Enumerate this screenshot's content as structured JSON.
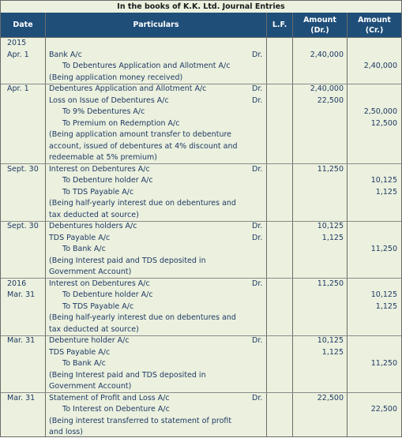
{
  "title": "In the books of K.K. Ltd. Journal Entries",
  "headers": {
    "date": "Date",
    "particulars": "Particulars",
    "lf": "L.F.",
    "amount_dr": [
      "Amount",
      "(Dr.)"
    ],
    "amount_cr": [
      "Amount",
      "(Cr.)"
    ]
  },
  "rows": [
    {
      "date": "2015",
      "particulars": "",
      "indent": 0,
      "lf": "",
      "dr": "",
      "cr": ""
    },
    {
      "date": "Apr. 1",
      "particulars": "Bank A/c",
      "indent": 0,
      "lf": "Dr.",
      "dr": "2,40,000",
      "cr": ""
    },
    {
      "date": "",
      "particulars": "To Debentures Application and Allotment A/c",
      "indent": 1,
      "lf": "",
      "dr": "",
      "cr": "2,40,000"
    },
    {
      "date": "",
      "particulars": "(Being application money received)",
      "indent": 0,
      "lf": "",
      "dr": "",
      "cr": ""
    },
    {
      "date": "Apr. 1",
      "particulars": "Debentures Application and Allotment A/c",
      "indent": 0,
      "lf": "Dr.",
      "dr": "2,40,000",
      "cr": ""
    },
    {
      "date": "",
      "particulars": "Loss on Issue of Debentures A/c",
      "indent": 0,
      "lf": "Dr.",
      "dr": "22,500",
      "cr": ""
    },
    {
      "date": "",
      "particulars": "To 9% Debentures A/c",
      "indent": 1,
      "lf": "",
      "dr": "",
      "cr": "2,50,000"
    },
    {
      "date": "",
      "particulars": "To Premium on Redemption A/c",
      "indent": 1,
      "lf": "",
      "dr": "",
      "cr": "12,500"
    },
    {
      "date": "",
      "particulars": "(Being application amount transfer to debenture",
      "indent": 0,
      "lf": "",
      "dr": "",
      "cr": ""
    },
    {
      "date": "",
      "particulars": "account, issued of debentures at 4% discount and",
      "indent": 0,
      "lf": "",
      "dr": "",
      "cr": ""
    },
    {
      "date": "",
      "particulars": "redeemable at 5% premium)",
      "indent": 0,
      "lf": "",
      "dr": "",
      "cr": ""
    },
    {
      "date": "Sept. 30",
      "particulars": "Interest on Debentures A/c",
      "indent": 0,
      "lf": "Dr.",
      "dr": "11,250",
      "cr": ""
    },
    {
      "date": "",
      "particulars": "To Debenture holder A/c",
      "indent": 1,
      "lf": "",
      "dr": "",
      "cr": "10,125"
    },
    {
      "date": "",
      "particulars": "To TDS Payable A/c",
      "indent": 1,
      "lf": "",
      "dr": "",
      "cr": "1,125"
    },
    {
      "date": "",
      "particulars": "(Being half-yearly interest due on debentures and",
      "indent": 0,
      "lf": "",
      "dr": "",
      "cr": ""
    },
    {
      "date": "",
      "particulars": "tax deducted at source)",
      "indent": 0,
      "lf": "",
      "dr": "",
      "cr": ""
    },
    {
      "date": "Sept. 30",
      "particulars": "Debentures holders A/c",
      "indent": 0,
      "lf": "Dr.",
      "dr": "10,125",
      "cr": ""
    },
    {
      "date": "",
      "particulars": "TDS Payable A/c",
      "indent": 0,
      "lf": "Dr.",
      "dr": "1,125",
      "cr": ""
    },
    {
      "date": "",
      "particulars": "To Bank A/c",
      "indent": 1,
      "lf": "",
      "dr": "",
      "cr": "11,250"
    },
    {
      "date": "",
      "particulars": "(Being Interest paid and TDS deposited in",
      "indent": 0,
      "lf": "",
      "dr": "",
      "cr": ""
    },
    {
      "date": "",
      "particulars": "Government Account)",
      "indent": 0,
      "lf": "",
      "dr": "",
      "cr": ""
    },
    {
      "date": "2016",
      "particulars": "Interest on Debentures A/c",
      "indent": 0,
      "lf": "Dr.",
      "dr": "11,250",
      "cr": ""
    },
    {
      "date": "Mar. 31",
      "particulars": "To Debenture holder A/c",
      "indent": 1,
      "lf": "",
      "dr": "",
      "cr": "10,125"
    },
    {
      "date": "",
      "particulars": "To TDS Payable A/c",
      "indent": 1,
      "lf": "",
      "dr": "",
      "cr": "1,125"
    },
    {
      "date": "",
      "particulars": "(Being half-yearly interest due on debentures and",
      "indent": 0,
      "lf": "",
      "dr": "",
      "cr": ""
    },
    {
      "date": "",
      "particulars": "tax deducted at source)",
      "indent": 0,
      "lf": "",
      "dr": "",
      "cr": ""
    },
    {
      "date": "Mar. 31",
      "particulars": "Debenture holder A/c",
      "indent": 0,
      "lf": "Dr.",
      "dr": "10,125",
      "cr": ""
    },
    {
      "date": "",
      "particulars": "TDS Payable A/c",
      "indent": 0,
      "lf": "",
      "dr": "1,125",
      "cr": ""
    },
    {
      "date": "",
      "particulars": "To Bank A/c",
      "indent": 1,
      "lf": "",
      "dr": "",
      "cr": "11,250"
    },
    {
      "date": "",
      "particulars": "(Being Interest paid and TDS deposited in",
      "indent": 0,
      "lf": "",
      "dr": "",
      "cr": ""
    },
    {
      "date": "",
      "particulars": "Government Account)",
      "indent": 0,
      "lf": "",
      "dr": "",
      "cr": ""
    },
    {
      "date": "Mar. 31",
      "particulars": "Statement of Profit and Loss A/c",
      "indent": 0,
      "lf": "Dr.",
      "dr": "22,500",
      "cr": ""
    },
    {
      "date": "",
      "particulars": "To Interest on Debenture A/c",
      "indent": 1,
      "lf": "",
      "dr": "",
      "cr": "22,500"
    },
    {
      "date": "",
      "particulars": "(Being interest transferred to statement of profit",
      "indent": 0,
      "lf": "",
      "dr": "",
      "cr": ""
    },
    {
      "date": "",
      "particulars": "and loss)",
      "indent": 0,
      "lf": "",
      "dr": "",
      "cr": ""
    }
  ]
}
